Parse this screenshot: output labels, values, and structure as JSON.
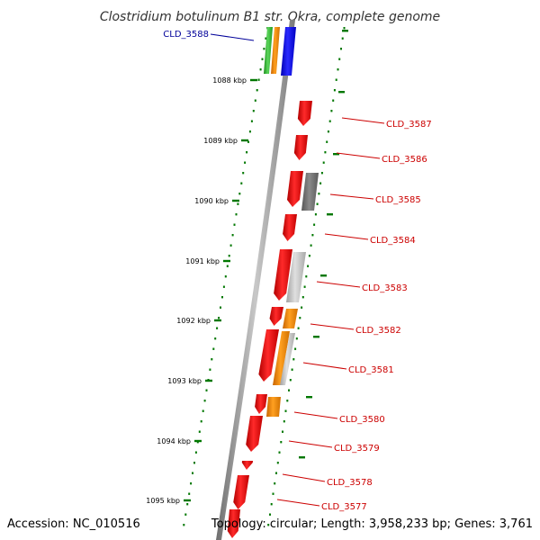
{
  "title": "Clostridium botulinum B1 str. Okra, complete genome",
  "footer": {
    "accession": "Accession: NC_010516",
    "summary": "Topology: circular; Length: 3,958,233 bp; Genes: 3,761"
  },
  "colors": {
    "backbone": "#9e9e9e",
    "forward_gene": "#ff0000",
    "reverse_gene": "#ff0000",
    "orange_feature": "#ff8c00",
    "gray_feature": "#777777",
    "light_gray_feature": "#bdbdbd",
    "blue_feature": "#0000ff",
    "green_feature": "#33bb33",
    "tick": "#007700",
    "label_blue": "#000099",
    "label_red": "#cc0000"
  },
  "axis": {
    "ticks": [
      "1088 kbp",
      "1089 kbp",
      "1090 kbp",
      "1091 kbp",
      "1092 kbp",
      "1093 kbp",
      "1094 kbp",
      "1095 kbp"
    ]
  },
  "genes": [
    {
      "name": "CLD_3588",
      "color": "label_blue"
    },
    {
      "name": "CLD_3587",
      "color": "label_red"
    },
    {
      "name": "CLD_3586",
      "color": "label_red"
    },
    {
      "name": "CLD_3585",
      "color": "label_red"
    },
    {
      "name": "CLD_3584",
      "color": "label_red"
    },
    {
      "name": "CLD_3583",
      "color": "label_red"
    },
    {
      "name": "CLD_3582",
      "color": "label_red"
    },
    {
      "name": "CLD_3581",
      "color": "label_red"
    },
    {
      "name": "CLD_3580",
      "color": "label_red"
    },
    {
      "name": "CLD_3579",
      "color": "label_red"
    },
    {
      "name": "CLD_3578",
      "color": "label_red"
    },
    {
      "name": "CLD_3577",
      "color": "label_red"
    }
  ]
}
